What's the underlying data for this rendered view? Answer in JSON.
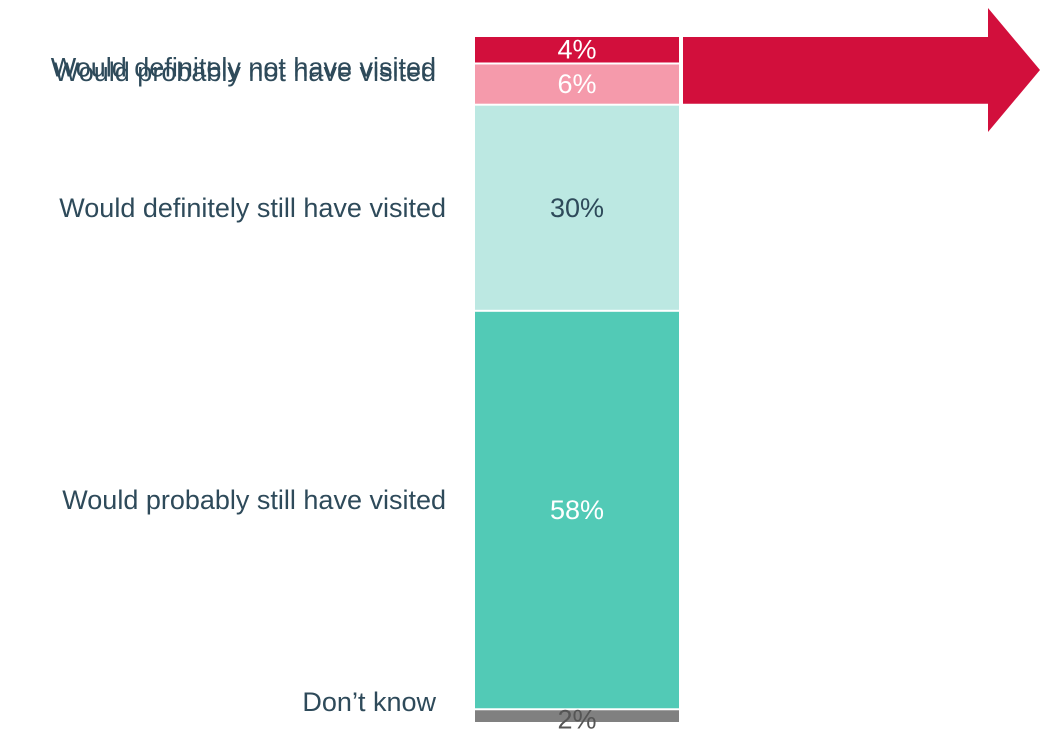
{
  "chart_data": {
    "type": "bar",
    "stacked": true,
    "orientation": "vertical",
    "categories": [
      "Would definitely not have visited",
      "Would probably not have visited",
      "Would definitely still have visited",
      "Would probably still have visited",
      "Don’t know"
    ],
    "values": [
      4,
      6,
      30,
      58,
      2
    ],
    "value_labels": [
      "4%",
      "6%",
      "30%",
      "58%",
      "2%"
    ],
    "colors": [
      "#d20f3c",
      "#f59aab",
      "#bce8e2",
      "#52cab6",
      "#808080"
    ],
    "value_label_colors": [
      "#ffffff",
      "#ffffff",
      "#2e4a5a",
      "#ffffff",
      "#555555"
    ],
    "category_label_color": "#2e4a5a",
    "arrow": {
      "color": "#d20f3c",
      "points_to": "right",
      "spans_categories": [
        "Would definitely not have visited",
        "Would probably not have visited"
      ]
    },
    "title": "",
    "xlabel": "",
    "ylabel": "",
    "ylim": [
      0,
      100
    ],
    "grid": false,
    "legend": "none"
  }
}
